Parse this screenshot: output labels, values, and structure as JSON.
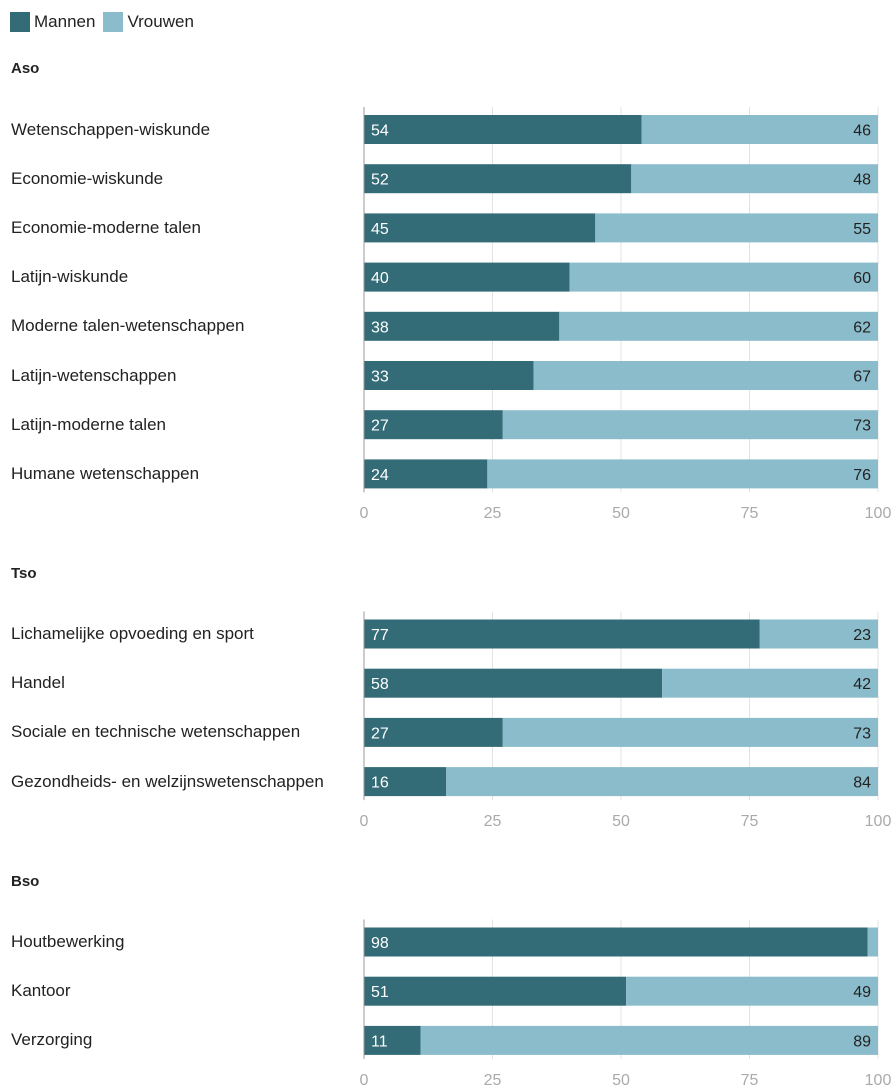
{
  "legend": {
    "men_label": "Mannen",
    "women_label": "Vrouwen"
  },
  "colors": {
    "men": "#336b77",
    "women": "#8bbccb",
    "grid": "#e3e3e3",
    "axis": "#999999",
    "tick_text": "#aaaaaa"
  },
  "chart_data": [
    {
      "type": "bar",
      "orientation": "horizontal-stacked",
      "title": "Aso",
      "categories": [
        "Wetenschappen-wiskunde",
        "Economie-wiskunde",
        "Economie-moderne talen",
        "Latijn-wiskunde",
        "Moderne talen-wetenschappen",
        "Latijn-wetenschappen",
        "Latijn-moderne talen",
        "Humane wetenschappen"
      ],
      "series": [
        {
          "name": "Mannen",
          "values": [
            54,
            52,
            45,
            40,
            38,
            33,
            27,
            24
          ]
        },
        {
          "name": "Vrouwen",
          "values": [
            46,
            48,
            55,
            60,
            62,
            67,
            73,
            76
          ]
        }
      ],
      "xlim": [
        0,
        100
      ],
      "xticks": [
        "0",
        "25",
        "50",
        "75",
        "100"
      ]
    },
    {
      "type": "bar",
      "orientation": "horizontal-stacked",
      "title": "Tso",
      "categories": [
        "Lichamelijke opvoeding en sport",
        "Handel",
        "Sociale en technische wetenschappen",
        "Gezondheids- en welzijnswetenschappen"
      ],
      "series": [
        {
          "name": "Mannen",
          "values": [
            77,
            58,
            27,
            16
          ]
        },
        {
          "name": "Vrouwen",
          "values": [
            23,
            42,
            73,
            84
          ]
        }
      ],
      "xlim": [
        0,
        100
      ],
      "xticks": [
        "0",
        "25",
        "50",
        "75",
        "100"
      ]
    },
    {
      "type": "bar",
      "orientation": "horizontal-stacked",
      "title": "Bso",
      "categories": [
        "Houtbewerking",
        "Kantoor",
        "Verzorging"
      ],
      "series": [
        {
          "name": "Mannen",
          "values": [
            98,
            51,
            11
          ]
        },
        {
          "name": "Vrouwen",
          "values": [
            2,
            49,
            89
          ]
        }
      ],
      "value_labels_shown": {
        "Vrouwen": [
          false,
          true,
          true
        ]
      },
      "xlim": [
        0,
        100
      ],
      "xticks": [
        "0",
        "25",
        "50",
        "75",
        "100"
      ]
    }
  ]
}
